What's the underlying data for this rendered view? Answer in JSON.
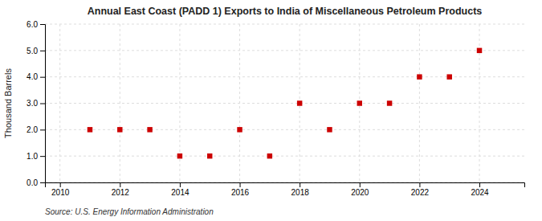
{
  "chart_data": {
    "type": "scatter",
    "title": "Annual East Coast (PADD 1) Exports to India of Miscellaneous Petroleum Products",
    "ylabel": "Thousand Barrels",
    "source": "Source: U.S. Energy Information Administration",
    "x": [
      2011,
      2012,
      2013,
      2014,
      2015,
      2016,
      2017,
      2018,
      2019,
      2020,
      2021,
      2022,
      2023,
      2024
    ],
    "values": [
      2,
      2,
      2,
      1,
      1,
      2,
      1,
      3,
      2,
      3,
      3,
      4,
      4,
      5
    ],
    "xlim": [
      2009.5,
      2025.5
    ],
    "xticks": [
      2010,
      2012,
      2014,
      2016,
      2018,
      2020,
      2022,
      2024
    ],
    "ylim": [
      0.0,
      6.0
    ],
    "yticks": [
      {
        "value": 0.0,
        "label": "0.0"
      },
      {
        "value": 1.0,
        "label": "1.0"
      },
      {
        "value": 2.0,
        "label": "2.0"
      },
      {
        "value": 3.0,
        "label": "3.0"
      },
      {
        "value": 4.0,
        "label": "4.0"
      },
      {
        "value": 5.0,
        "label": "5.0"
      },
      {
        "value": 6.0,
        "label": "6.0"
      }
    ],
    "color": "#cc0000",
    "marker": "square",
    "grid": true
  }
}
